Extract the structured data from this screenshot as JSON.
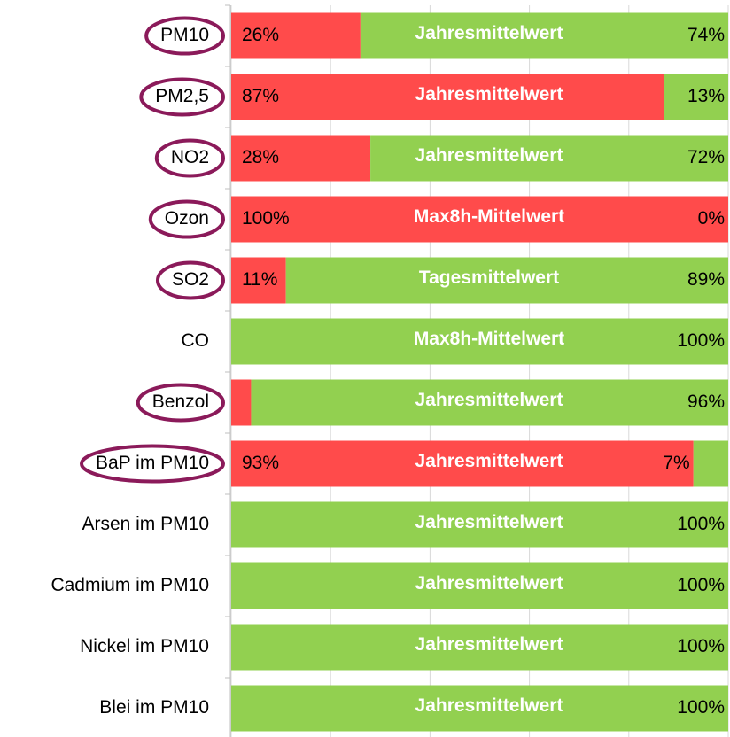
{
  "chart_data": {
    "type": "stacked-bar-horizontal",
    "categories": [
      "PM10",
      "PM2,5",
      "NO2",
      "Ozon",
      "SO2",
      "CO",
      "Benzol",
      "BaP im PM10",
      "Arsen im PM10",
      "Cadmium im PM10",
      "Nickel im PM10",
      "Blei im PM10"
    ],
    "annotations": [
      "Jahresmittelwert",
      "Jahresmittelwert",
      "Jahresmittelwert",
      "Max8h-Mittelwert",
      "Tagesmittelwert",
      "Max8h-Mittelwert",
      "Jahresmittelwert",
      "Jahresmittelwert",
      "Jahresmittelwert",
      "Jahresmittelwert",
      "Jahresmittelwert",
      "Jahresmittelwert"
    ],
    "highlight": [
      true,
      true,
      true,
      true,
      true,
      false,
      true,
      true,
      false,
      false,
      false,
      false
    ],
    "highlight_color": "#8b1a5a",
    "series": [
      {
        "color": "#ff4b4b",
        "values": [
          26,
          87,
          28,
          100,
          11,
          0,
          4,
          93,
          0,
          0,
          0,
          0
        ],
        "value_labels": [
          "26%",
          "87%",
          "28%",
          "100%",
          "11%",
          null,
          "4%",
          "93%",
          null,
          null,
          null,
          null
        ]
      },
      {
        "color": "#92d050",
        "values": [
          74,
          13,
          72,
          0,
          89,
          100,
          96,
          7,
          100,
          100,
          100,
          100
        ],
        "value_labels": [
          "74%",
          "13%",
          "72%",
          "0%",
          "89%",
          "100%",
          "96%",
          "7%",
          "100%",
          "100%",
          "100%",
          "100%"
        ]
      }
    ],
    "xlim": [
      0,
      100
    ],
    "xticks": [
      0,
      20,
      40,
      60,
      80,
      100
    ],
    "grid": true
  }
}
